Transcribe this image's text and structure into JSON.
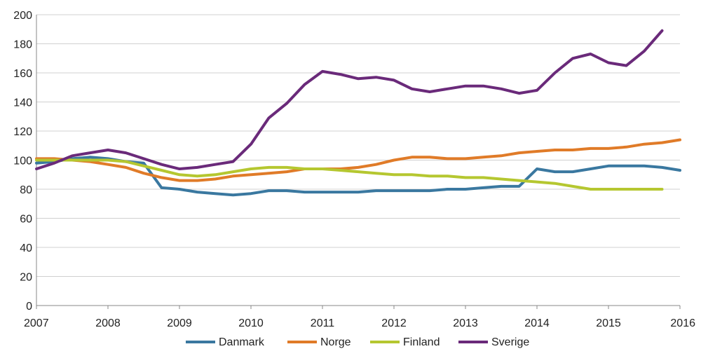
{
  "chart_data": {
    "type": "line",
    "title": "",
    "xlabel": "",
    "ylabel": "",
    "xlim": [
      2007,
      2016
    ],
    "ylim": [
      0,
      200
    ],
    "yticks": [
      0,
      20,
      40,
      60,
      80,
      100,
      120,
      140,
      160,
      180,
      200
    ],
    "xticks": [
      2007,
      2008,
      2009,
      2010,
      2011,
      2012,
      2013,
      2014,
      2015,
      2016
    ],
    "ytick_labels": [
      "0",
      "20",
      "40",
      "60",
      "80",
      "100",
      "120",
      "140",
      "160",
      "180",
      "200"
    ],
    "xtick_labels": [
      "2007",
      "2008",
      "2009",
      "2010",
      "2011",
      "2012",
      "2013",
      "2014",
      "2015",
      "2016"
    ],
    "grid": true,
    "legend_position": "bottom",
    "series": [
      {
        "name": "Danmark",
        "color": "#3a78a0",
        "x": [
          2007,
          2007.25,
          2007.5,
          2007.75,
          2008,
          2008.25,
          2008.5,
          2008.75,
          2009,
          2009.25,
          2009.5,
          2009.75,
          2010,
          2010.25,
          2010.5,
          2010.75,
          2011,
          2011.25,
          2011.5,
          2011.75,
          2012,
          2012.25,
          2012.5,
          2012.75,
          2013,
          2013.25,
          2013.5,
          2013.75,
          2014,
          2014.25,
          2014.5,
          2014.75,
          2015,
          2015.25,
          2015.5,
          2015.75,
          2016
        ],
        "values": [
          98,
          99,
          101,
          102,
          101,
          99,
          98,
          81,
          80,
          78,
          77,
          76,
          77,
          79,
          79,
          78,
          78,
          78,
          78,
          79,
          79,
          79,
          79,
          80,
          80,
          81,
          82,
          82,
          94,
          92,
          92,
          94,
          96,
          96,
          96,
          95,
          93
        ]
      },
      {
        "name": "Norge",
        "color": "#e07b28",
        "x": [
          2007,
          2007.25,
          2007.5,
          2007.75,
          2008,
          2008.25,
          2008.5,
          2008.75,
          2009,
          2009.25,
          2009.5,
          2009.75,
          2010,
          2010.25,
          2010.5,
          2010.75,
          2011,
          2011.25,
          2011.5,
          2011.75,
          2012,
          2012.25,
          2012.5,
          2012.75,
          2013,
          2013.25,
          2013.5,
          2013.75,
          2014,
          2014.25,
          2014.5,
          2014.75,
          2015,
          2015.25,
          2015.5,
          2015.75,
          2016
        ],
        "values": [
          101,
          101,
          100,
          99,
          97,
          95,
          91,
          88,
          86,
          86,
          87,
          89,
          90,
          91,
          92,
          94,
          94,
          94,
          95,
          97,
          100,
          102,
          102,
          101,
          101,
          102,
          103,
          105,
          106,
          107,
          107,
          108,
          108,
          109,
          111,
          112,
          114
        ]
      },
      {
        "name": "Finland",
        "color": "#b5c730",
        "x": [
          2007,
          2007.25,
          2007.5,
          2007.75,
          2008,
          2008.25,
          2008.5,
          2008.75,
          2009,
          2009.25,
          2009.5,
          2009.75,
          2010,
          2010.25,
          2010.5,
          2010.75,
          2011,
          2011.25,
          2011.5,
          2011.75,
          2012,
          2012.25,
          2012.5,
          2012.75,
          2013,
          2013.25,
          2013.5,
          2013.75,
          2014,
          2014.25,
          2014.5,
          2014.75,
          2015,
          2015.25,
          2015.5,
          2015.75
        ],
        "values": [
          100,
          100,
          100,
          100,
          100,
          99,
          96,
          93,
          90,
          89,
          90,
          92,
          94,
          95,
          95,
          94,
          94,
          93,
          92,
          91,
          90,
          90,
          89,
          89,
          88,
          88,
          87,
          86,
          85,
          84,
          82,
          80,
          80,
          80,
          80,
          80
        ]
      },
      {
        "name": "Sverige",
        "color": "#6a2a7a",
        "x": [
          2007,
          2007.25,
          2007.5,
          2007.75,
          2008,
          2008.25,
          2008.5,
          2008.75,
          2009,
          2009.25,
          2009.5,
          2009.75,
          2010,
          2010.25,
          2010.5,
          2010.75,
          2011,
          2011.25,
          2011.5,
          2011.75,
          2012,
          2012.25,
          2012.5,
          2012.75,
          2013,
          2013.25,
          2013.5,
          2013.75,
          2014,
          2014.25,
          2014.5,
          2014.75,
          2015,
          2015.25,
          2015.5,
          2015.75
        ],
        "values": [
          94,
          98,
          103,
          105,
          107,
          105,
          101,
          97,
          94,
          95,
          97,
          99,
          111,
          129,
          139,
          152,
          161,
          159,
          156,
          157,
          155,
          149,
          147,
          149,
          151,
          151,
          149,
          146,
          148,
          160,
          170,
          173,
          167,
          165,
          175,
          189
        ]
      }
    ]
  }
}
